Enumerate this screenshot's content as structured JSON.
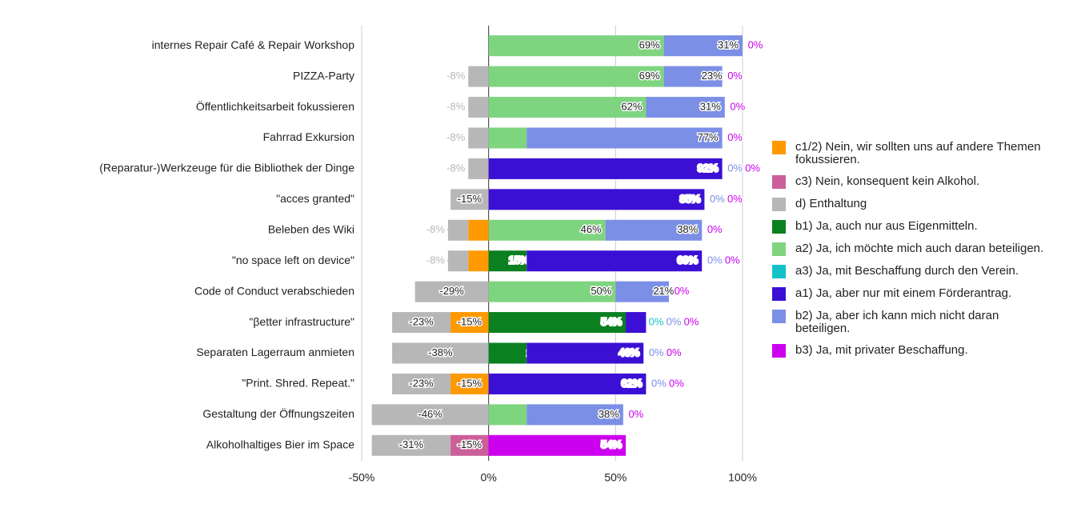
{
  "chart_data": {
    "type": "diverging-bar",
    "categories": [
      "internes Repair Café & Repair Workshop",
      "PIZZA-Party",
      "Öffentlichkeitsarbeit fokussieren",
      "Fahrrad Exkursion",
      "(Reparatur-)Werkzeuge für die Bibliothek der Dinge",
      "\"acces granted\"",
      "Beleben des Wiki",
      "\"no space left on device\"",
      "Code of Conduct verabschieden",
      "\"βetter infrastructure\"",
      "Separaten Lagerraum anmieten",
      "\"Print. Shred. Repeat.\"",
      "Gestaltung der Öffnungszeiten",
      "Alkoholhaltiges Bier im Space"
    ],
    "series": [
      {
        "name": "c1/2) Nein, wir sollten uns auf andere Themen fokussieren.",
        "color": "#ff9900",
        "values": [
          0,
          0,
          0,
          0,
          0,
          0,
          -8,
          -8,
          0,
          -15,
          0,
          -15,
          0,
          0
        ],
        "value_labels": [
          "0%",
          "0%",
          "0%",
          "0%",
          "0%",
          "0%",
          "-8%",
          "-8%",
          "0%",
          "-15%",
          "0%",
          "-15%",
          "0%",
          "0%"
        ]
      },
      {
        "name": "c3) Nein, konsequent kein Alkohol.",
        "color": "#cc5f9a",
        "values": [
          0,
          0,
          0,
          0,
          0,
          0,
          0,
          0,
          0,
          0,
          0,
          0,
          0,
          -15
        ],
        "value_labels": [
          "0%",
          "0%",
          "0%",
          "0%",
          "0%",
          "0%",
          "0%",
          "0%",
          "0%",
          "0%",
          "0%",
          "0%",
          "0%",
          "-15%"
        ]
      },
      {
        "name": "d) Enthaltung",
        "color": "#b7b7b7",
        "values": [
          0,
          -8,
          -8,
          -8,
          -8,
          -15,
          -8,
          -8,
          -29,
          -23,
          -38,
          -23,
          -46,
          -31
        ],
        "value_labels": [
          "0%",
          "-8%",
          "-8%",
          "-8%",
          "-8%",
          "-15%",
          "-8%",
          "-8%",
          "-29%",
          "-23%",
          "-38%",
          "-23%",
          "-46%",
          "-31%"
        ]
      },
      {
        "name": "b1) Ja, auch nur aus Eigenmitteln.",
        "color": "#0b8020",
        "values": [
          0,
          0,
          0,
          0,
          0,
          0,
          0,
          15,
          0,
          54,
          15,
          0,
          0,
          0
        ],
        "value_labels": [
          "0%",
          "0%",
          "0%",
          "0%",
          "0%",
          "0%",
          "0%",
          "15%",
          "0%",
          "54%",
          "15%",
          "0%",
          "0%",
          "0%"
        ]
      },
      {
        "name": "a2) Ja, ich möchte mich auch daran beteiligen.",
        "color": "#7fd47f",
        "values": [
          69,
          69,
          62,
          15,
          0,
          0,
          46,
          0,
          50,
          0,
          0,
          0,
          15,
          0
        ],
        "value_labels": [
          "69%",
          "69%",
          "62%",
          "15%",
          "0%",
          "0%",
          "46%",
          "0%",
          "50%",
          "0%",
          "0%",
          "0%",
          "15%",
          "0%"
        ]
      },
      {
        "name": "a3) Ja, mit Beschaffung durch den Verein.",
        "color": "#12c2c9",
        "values": [
          0,
          0,
          0,
          0,
          0,
          0,
          0,
          0,
          0,
          0,
          0,
          0,
          0,
          0
        ],
        "value_labels": [
          "0%",
          "0%",
          "0%",
          "0%",
          "0%",
          "0%",
          "0%",
          "0%",
          "0%",
          "0%",
          "0%",
          "0%",
          "0%",
          "0%"
        ]
      },
      {
        "name": "a1) Ja, aber nur mit einem Förderantrag.",
        "color": "#3b10d4",
        "values": [
          0,
          0,
          0,
          0,
          92,
          85,
          0,
          69,
          0,
          8,
          46,
          62,
          0,
          0
        ],
        "value_labels": [
          "0%",
          "0%",
          "0%",
          "0%",
          "92%",
          "85%",
          "0%",
          "69%",
          "0%",
          "8%",
          "46%",
          "62%",
          "0%",
          "0%"
        ]
      },
      {
        "name": "b2) Ja, aber ich kann mich nicht daran beteiligen.",
        "color": "#7b8fe6",
        "values": [
          31,
          23,
          31,
          77,
          0,
          0,
          38,
          0,
          21,
          0,
          0,
          0,
          38,
          0
        ],
        "value_labels": [
          "31%",
          "23%",
          "31%",
          "77%",
          "0%",
          "0%",
          "38%",
          "0%",
          "21%",
          "0%",
          "0%",
          "0%",
          "38%",
          "0%"
        ]
      },
      {
        "name": "b3) Ja, mit privater Beschaffung.",
        "color": "#cc00ee",
        "values": [
          0,
          0,
          0,
          0,
          0,
          0,
          0,
          0,
          0,
          0,
          0,
          0,
          0,
          54
        ],
        "value_labels": [
          "0%",
          "0%",
          "0%",
          "0%",
          "0%",
          "0%",
          "0%",
          "0%",
          "0%",
          "0%",
          "0%",
          "0%",
          "0%",
          "54%"
        ]
      }
    ],
    "xlim": [
      -50,
      100
    ],
    "xticks": [
      {
        "value": -50,
        "label": "-50%"
      },
      {
        "value": 0,
        "label": "0%"
      },
      {
        "value": 50,
        "label": "50%"
      },
      {
        "value": 100,
        "label": "100%"
      }
    ],
    "grid": true,
    "legend": "right"
  }
}
